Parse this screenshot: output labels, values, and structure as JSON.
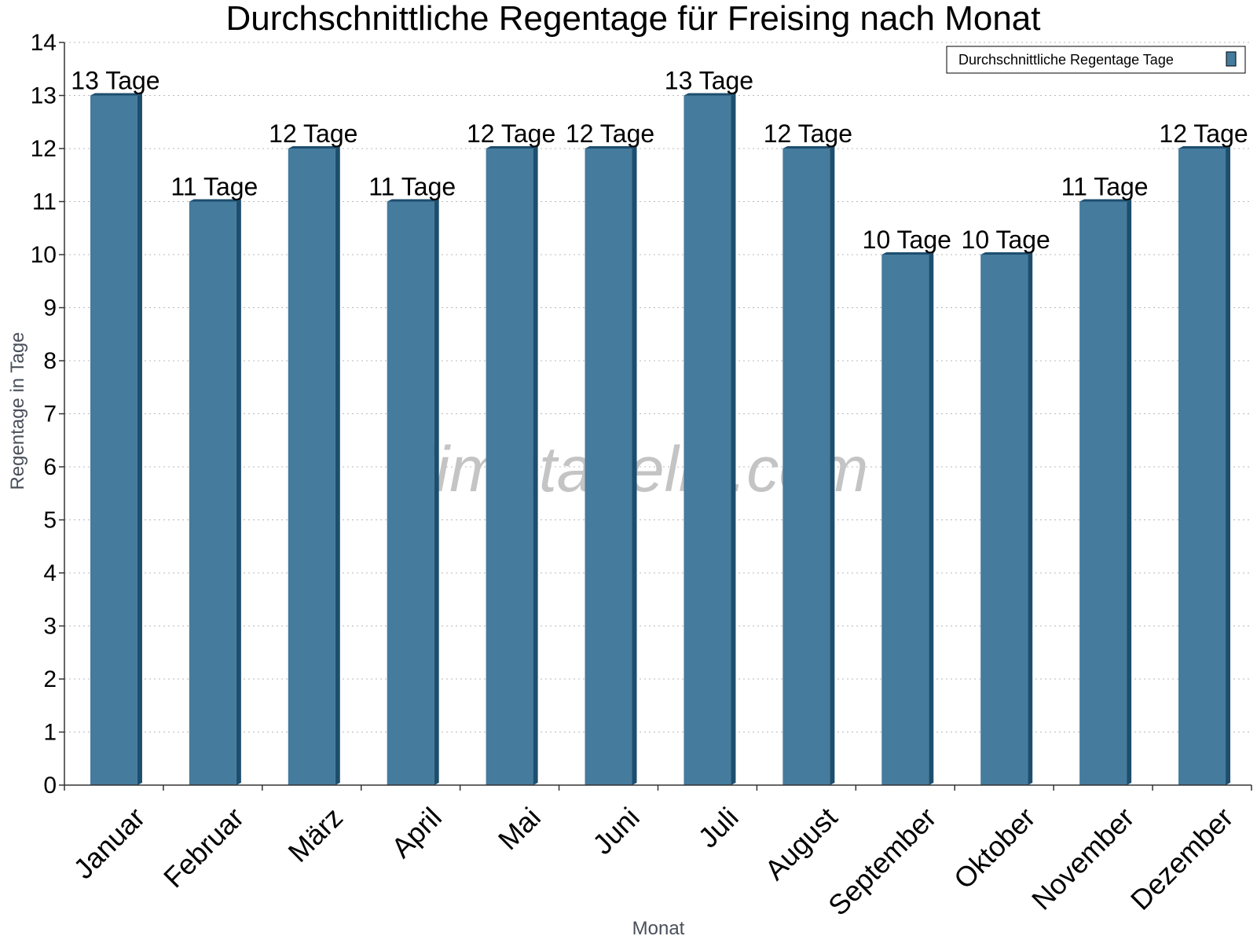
{
  "chart_data": {
    "type": "bar",
    "title": "Durchschnittliche Regentage für Freising nach Monat",
    "xlabel": "Monat",
    "ylabel": "Regentage in Tage",
    "categories": [
      "Januar",
      "Februar",
      "März",
      "April",
      "Mai",
      "Juni",
      "Juli",
      "August",
      "September",
      "Oktober",
      "November",
      "Dezember"
    ],
    "series": [
      {
        "name": "Durchschnittliche Regentage Tage",
        "values": [
          13,
          11,
          12,
          11,
          12,
          12,
          13,
          12,
          10,
          10,
          11,
          12
        ],
        "data_labels": [
          "13 Tage",
          "11 Tage",
          "12 Tage",
          "11 Tage",
          "12 Tage",
          "12 Tage",
          "13 Tage",
          "12 Tage",
          "10 Tage",
          "10 Tage",
          "11 Tage",
          "12 Tage"
        ]
      }
    ],
    "ylim": [
      0,
      14
    ],
    "yticks": [
      0,
      1,
      2,
      3,
      4,
      5,
      6,
      7,
      8,
      9,
      10,
      11,
      12,
      13,
      14
    ],
    "grid": true,
    "legend_position": "top-right",
    "watermark": "klimatabelle.com",
    "colors": {
      "bar": "#457b9d",
      "bar_side": "#1d4e6e",
      "grid": "#b8b8b8",
      "axis": "#333333",
      "text": "#000000",
      "axis_title": "#4a4f5a",
      "watermark": "#c4c4c4"
    }
  }
}
